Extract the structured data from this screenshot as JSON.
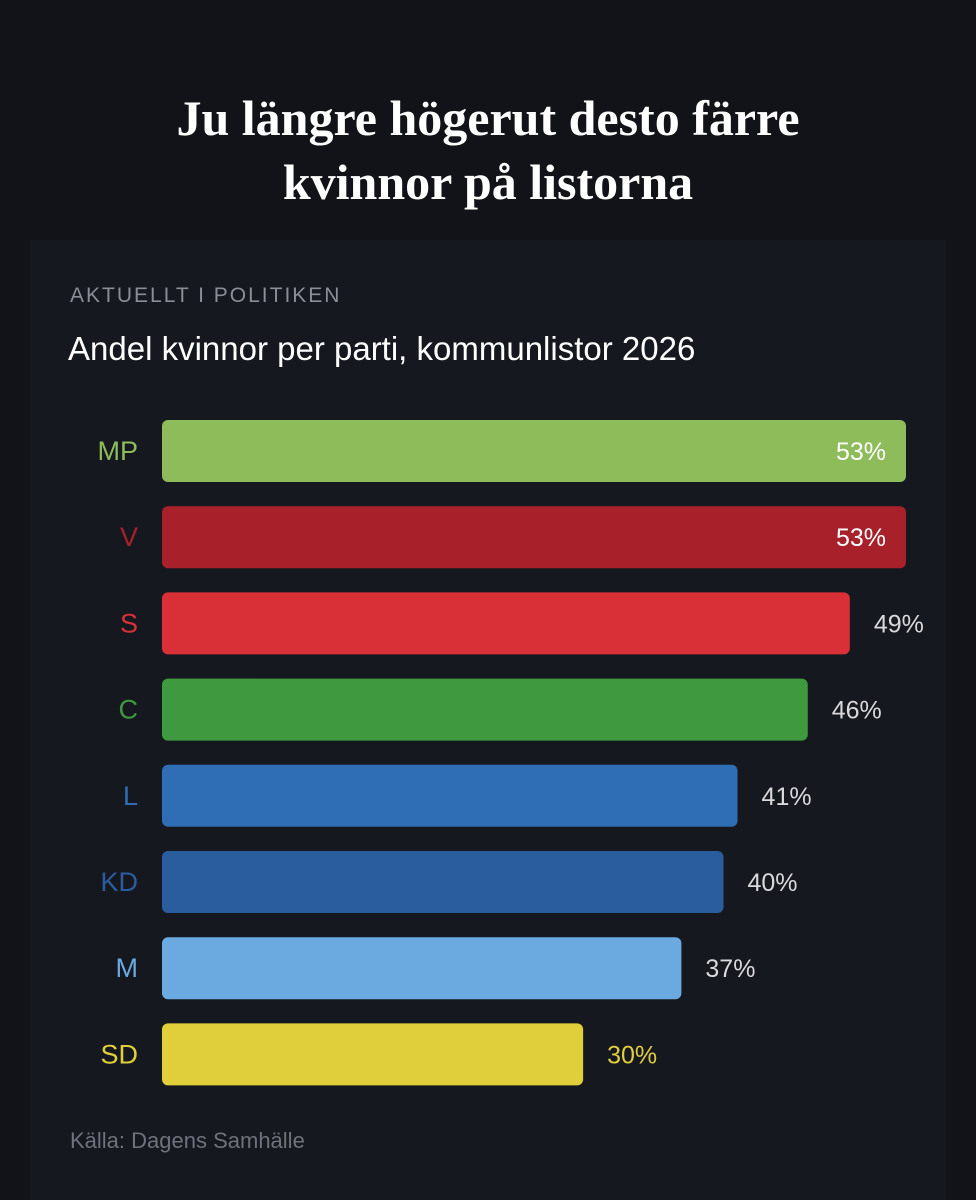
{
  "headline": {
    "line1": "Ju längre högerut desto färre",
    "line2": "kvinnor på listorna"
  },
  "kicker": "AKTUELLT I POLITIKEN",
  "source": "Källa: Dagens Samhälle",
  "chart_data": {
    "type": "bar",
    "orientation": "horizontal",
    "title": "Andel kvinnor per parti, kommunlistor 2026",
    "xlabel": "",
    "ylabel": "",
    "grid": false,
    "unit": "%",
    "categories": [
      "MP",
      "V",
      "S",
      "C",
      "L",
      "KD",
      "M",
      "SD"
    ],
    "values": [
      53,
      53,
      49,
      46,
      41,
      40,
      37,
      30
    ],
    "labels": [
      "53%",
      "53%",
      "49%",
      "46%",
      "41%",
      "40%",
      "37%",
      "30%"
    ],
    "colors": [
      "#8fbc5a",
      "#a8202a",
      "#d93038",
      "#3f9a3f",
      "#2f6db5",
      "#2a5d9e",
      "#6aaae0",
      "#e0cf3a"
    ],
    "label_colors": [
      "#8fbc5a",
      "#a8202a",
      "#d93038",
      "#3f9a3f",
      "#2f6db5",
      "#2a5d9e",
      "#6aaae0",
      "#e0cf3a"
    ],
    "value_label_inside": [
      true,
      true,
      false,
      false,
      false,
      false,
      false,
      false
    ],
    "value_label_colors": [
      "#ffffff",
      "#ffffff",
      "#d9d9dc",
      "#d9d9dc",
      "#d9d9dc",
      "#d9d9dc",
      "#d9d9dc",
      "#e0cf3a"
    ],
    "xlim": [
      0,
      53
    ]
  }
}
